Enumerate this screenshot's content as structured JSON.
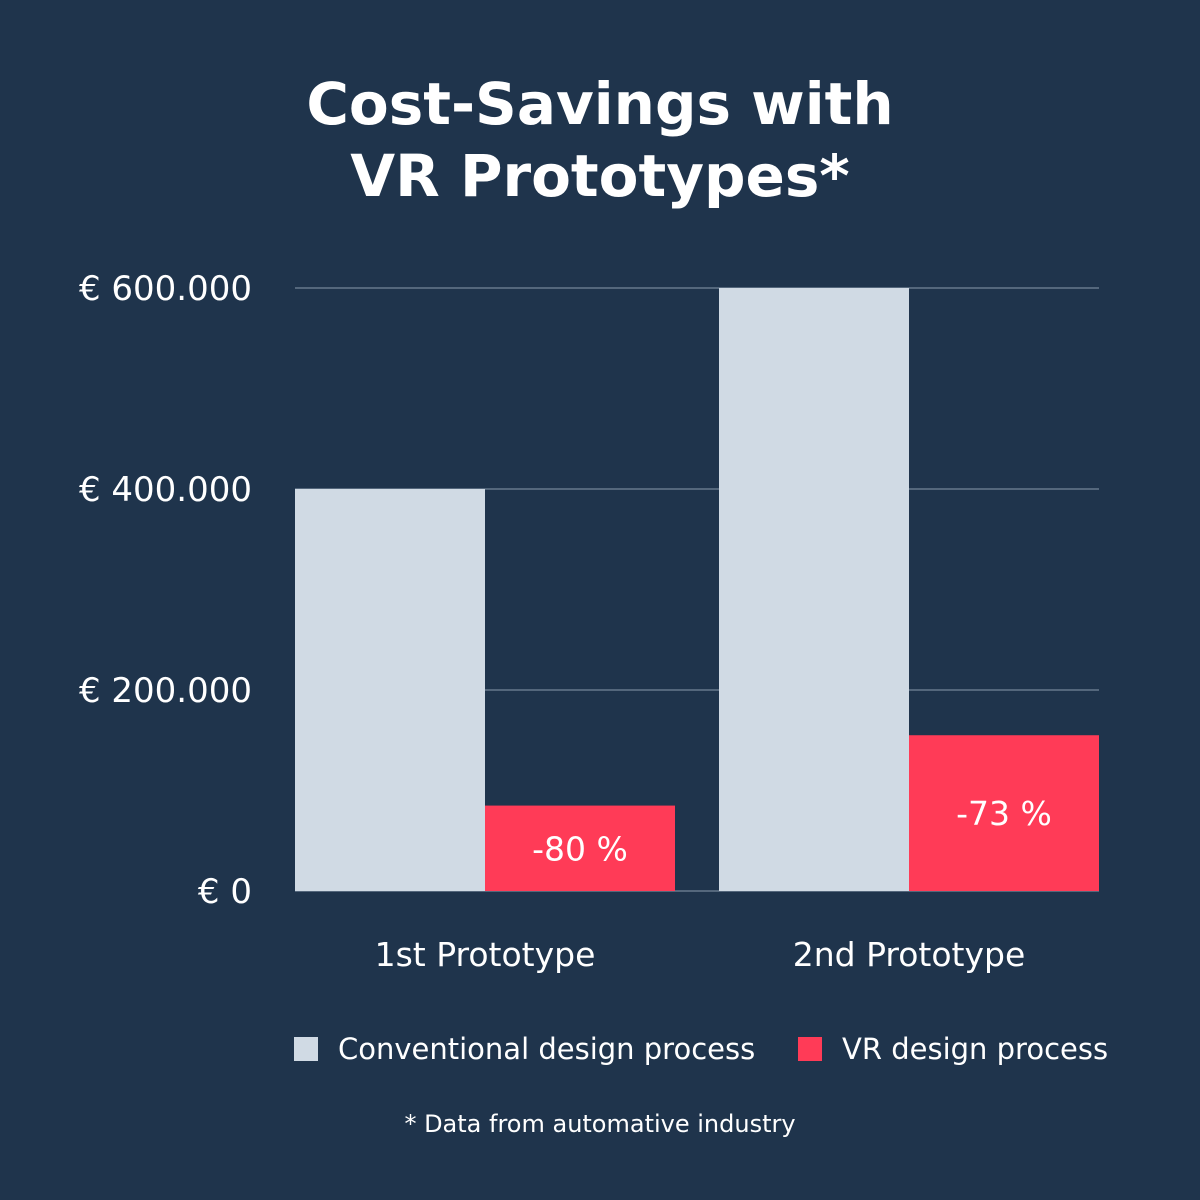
{
  "chart_data": {
    "type": "bar",
    "title_lines": [
      "Cost-Savings with",
      "VR Prototypes*"
    ],
    "categories": [
      "1st Prototype",
      "2nd Prototype"
    ],
    "series": [
      {
        "name": "Conventional design process",
        "values": [
          400000,
          600000
        ],
        "color": "#d0dae4"
      },
      {
        "name": "VR design process",
        "values": [
          85000,
          155000
        ],
        "color": "#ff3b57",
        "data_labels": [
          "-80 %",
          "-73 %"
        ]
      }
    ],
    "yticks": [
      0,
      200000,
      400000,
      600000
    ],
    "ytick_labels": [
      "€ 0",
      "€ 200.000",
      "€ 400.000",
      "€ 600.000"
    ],
    "ylim": [
      0,
      600000
    ],
    "grid": true,
    "legend_position": "bottom",
    "footnote": "* Data from automative industry",
    "colors": {
      "background": "#1f344c",
      "grid": "#8a9aab"
    }
  }
}
